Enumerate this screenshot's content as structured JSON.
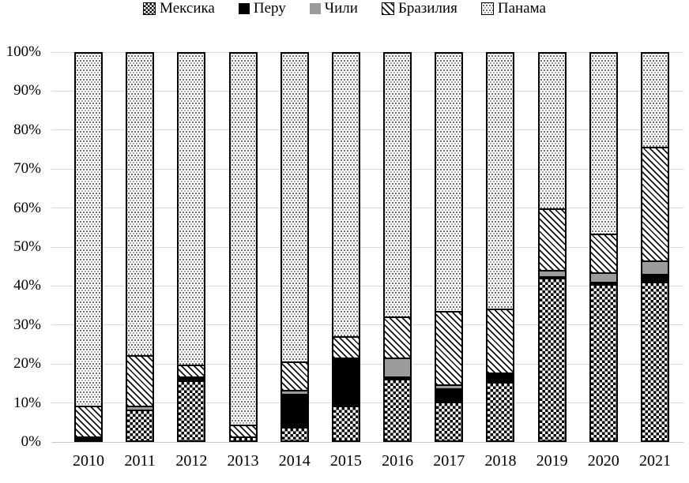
{
  "chart_data": {
    "type": "bar",
    "variant": "stacked-100-percent",
    "title": "",
    "legend_position": "top",
    "grid": true,
    "categories": [
      "2010",
      "2011",
      "2012",
      "2013",
      "2014",
      "2015",
      "2016",
      "2017",
      "2018",
      "2019",
      "2020",
      "2021"
    ],
    "series": [
      {
        "name": "Мексика",
        "slug": "mexico",
        "pattern": "checker",
        "values": [
          0,
          8,
          15.5,
          1,
          3.5,
          9,
          16,
          10,
          15,
          42,
          40.5,
          41
        ]
      },
      {
        "name": "Перу",
        "slug": "peru",
        "pattern": "solid-black",
        "values": [
          1,
          0,
          1,
          0,
          8.5,
          12,
          0.5,
          3.5,
          2.5,
          0.5,
          0.5,
          2
        ]
      },
      {
        "name": "Чили",
        "slug": "chile",
        "pattern": "solid-gray",
        "values": [
          0,
          1,
          0,
          0,
          1,
          0.5,
          5,
          1,
          0,
          1.5,
          2.5,
          3.5
        ]
      },
      {
        "name": "Бразилия",
        "slug": "brazil",
        "pattern": "hatch",
        "values": [
          8,
          13,
          3,
          3,
          7.5,
          5.5,
          10.5,
          19,
          16.5,
          16,
          10,
          29.5
        ]
      },
      {
        "name": "Панама",
        "slug": "panama",
        "pattern": "dots",
        "values": [
          91,
          78,
          80.5,
          96,
          79.5,
          73,
          68,
          66.5,
          66,
          40,
          46.5,
          24
        ]
      }
    ],
    "y_axis": {
      "min": 0,
      "max": 100,
      "tick_step": 10,
      "tick_labels": [
        "0%",
        "10%",
        "20%",
        "30%",
        "40%",
        "50%",
        "60%",
        "70%",
        "80%",
        "90%",
        "100%"
      ]
    }
  },
  "colors": {
    "text": "#000000",
    "segment_border": "#000000",
    "solid_gray": "#9b9b9b",
    "gridline": "#d9d9d9",
    "background": "#ffffff"
  }
}
